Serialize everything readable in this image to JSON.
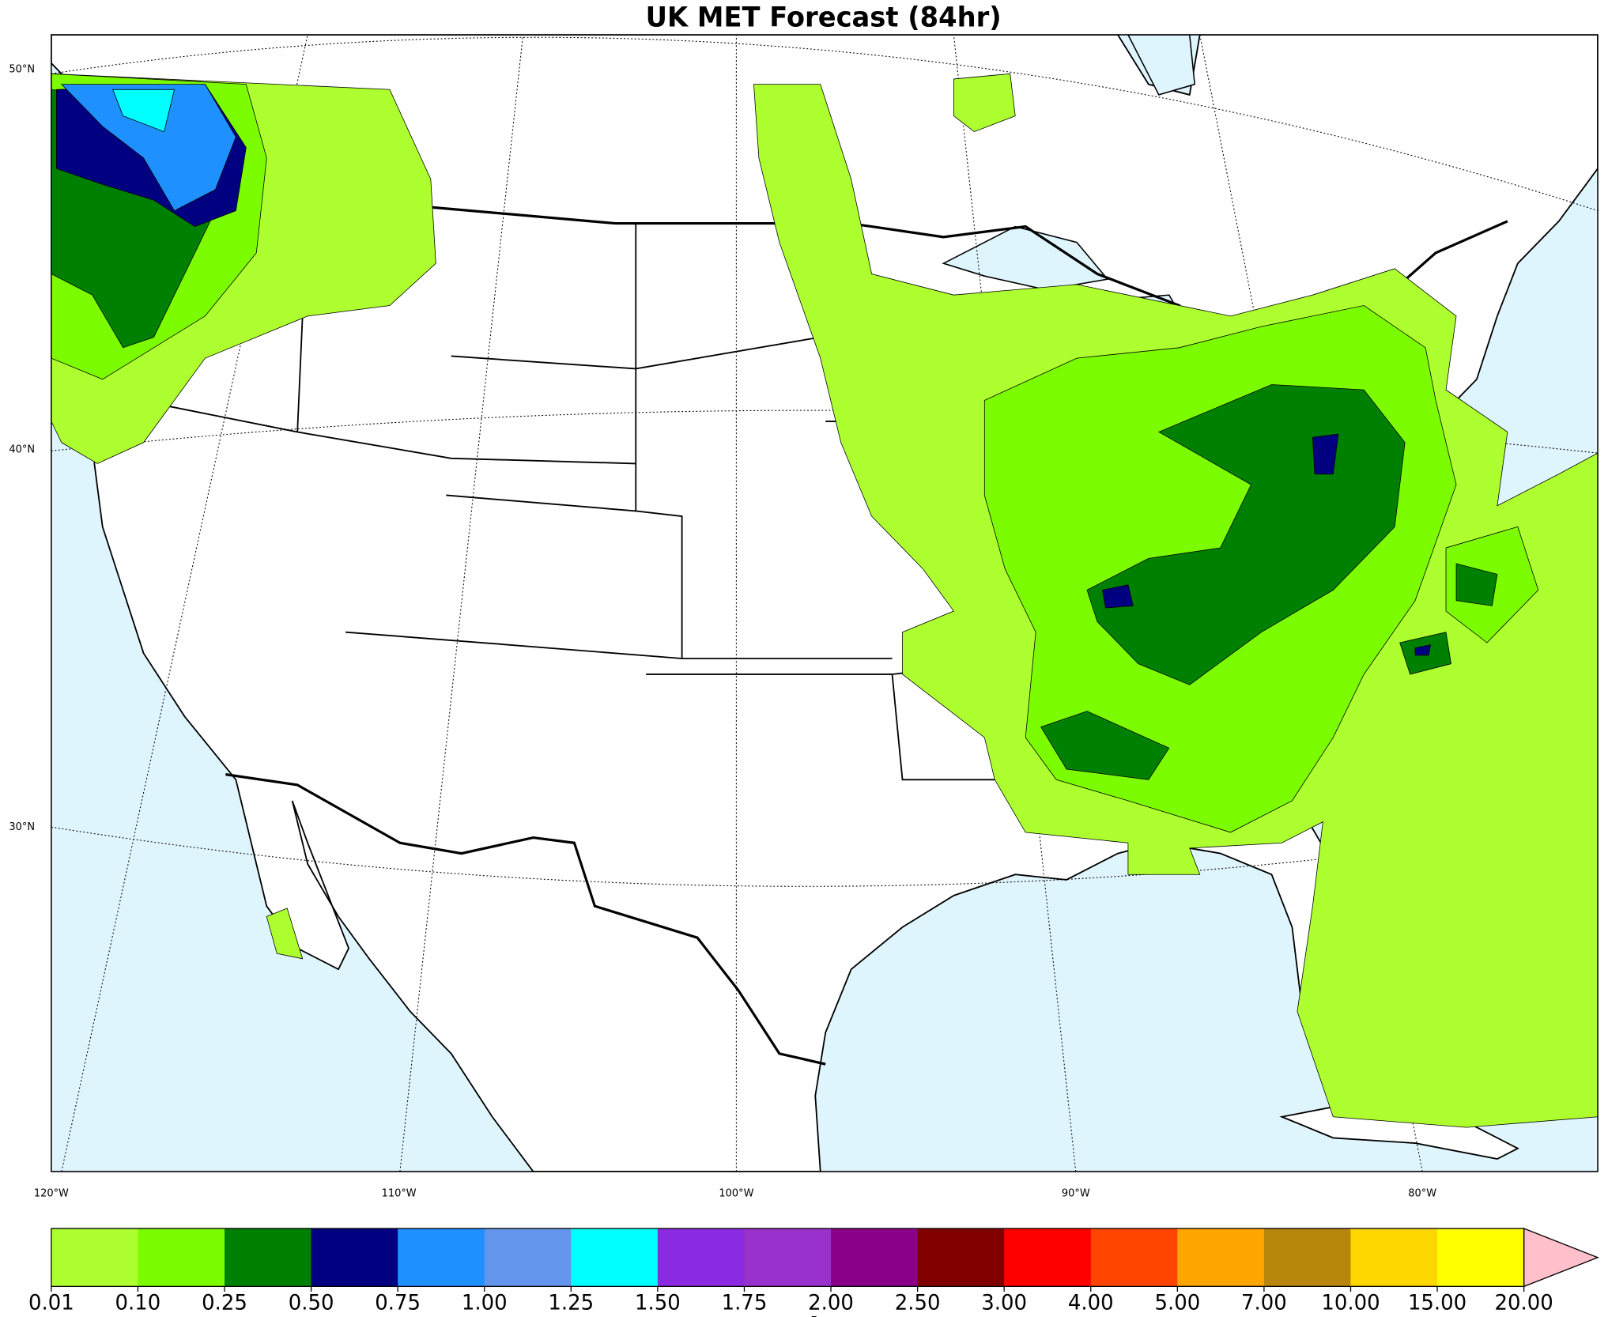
{
  "title": "UK MET Forecast (84hr)",
  "lat_labels": [
    "50°N",
    "40°N",
    "30°N"
  ],
  "lon_labels": [
    "120°W",
    "110°W",
    "100°W",
    "90°W",
    "80°W"
  ],
  "colorbar": {
    "ticks": [
      {
        "value": 0.01,
        "label": "0.01"
      },
      {
        "value": 0.1,
        "label": "0.10"
      },
      {
        "value": 0.25,
        "label": "0.25"
      },
      {
        "value": 0.5,
        "label": "0.50"
      },
      {
        "value": 0.75,
        "label": "0.75"
      },
      {
        "value": 1,
        "label": "1.00"
      },
      {
        "value": 1.25,
        "label": "1.25"
      },
      {
        "value": 1.5,
        "label": "1.50"
      },
      {
        "value": 1.75,
        "label": "1.75"
      },
      {
        "value": 2,
        "label": "2.00"
      },
      {
        "value": 2.5,
        "label": "2.50"
      },
      {
        "value": 3,
        "label": "3.00"
      },
      {
        "value": 4,
        "label": "4.00"
      },
      {
        "value": 5,
        "label": "5.00"
      },
      {
        "value": 7,
        "label": "7.00"
      },
      {
        "value": 10,
        "label": "10.00"
      },
      {
        "value": 15,
        "label": "15.00"
      },
      {
        "value": 20,
        "label": "20.00"
      }
    ],
    "colors": [
      "#adff2f",
      "#7cfc00",
      "#008000",
      "#000080",
      "#1e90ff",
      "#6495ed",
      "#00ffff",
      "#8a2be2",
      "#9932cc",
      "#8b008b",
      "#800000",
      "#ff0000",
      "#ff4500",
      "#ffa500",
      "#b8860b",
      "#ffd700",
      "#ffff00"
    ],
    "extend_color": "#ffc0cb",
    "unit": "in"
  }
}
